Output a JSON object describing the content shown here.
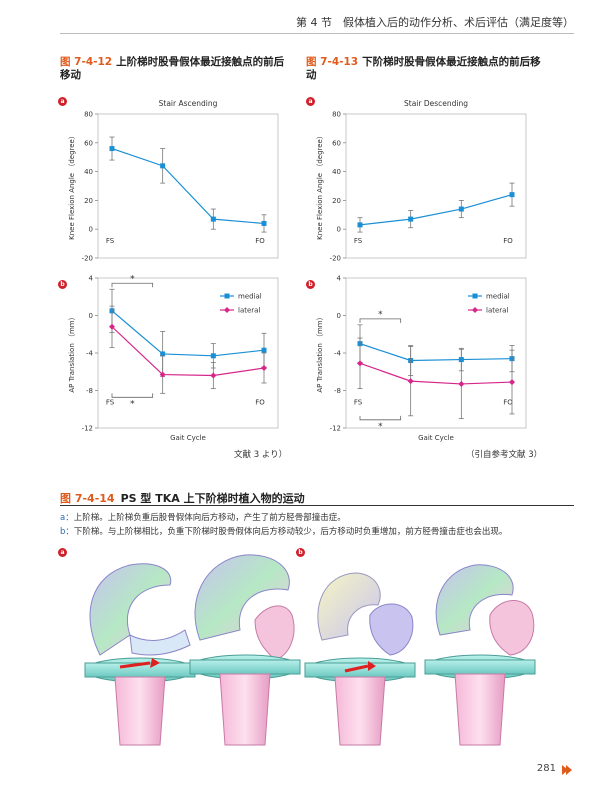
{
  "header": {
    "section": "第 4 节　假体植入后的动作分析、术后评估（满足度等）"
  },
  "fig12": {
    "num": "图 7-4-12",
    "title": "上阶梯时股骨假体最近接触点的前后移动"
  },
  "fig13": {
    "num": "图 7-4-13",
    "title": "下阶梯时股骨假体最近接触点的前后移动"
  },
  "badges": {
    "a": "a",
    "b": "b"
  },
  "fig12_ref": "文献 3 より）",
  "fig13_ref": "（引自参考文献 3）",
  "fig14": {
    "num": "图 7-4-14",
    "title": "PS 型 TKA 上下阶梯时植入物的运动",
    "desc_a_label": "a：",
    "desc_a": "上阶梯。上阶梯负重后股骨假体向后方移动，产生了前方胫骨部撞击症。",
    "desc_b_label": "b：",
    "desc_b": "下阶梯。与上阶梯相比，负重下阶梯时股骨假体向后方移动较少，后方移动时负重增加，前方胫骨撞击症也会出现。"
  },
  "page_number": "281",
  "colors": {
    "medial": "#1a8fd6",
    "lateral": "#d6268a",
    "accent": "#e05a1c"
  },
  "chart_data": [
    {
      "type": "line",
      "title": "Stair Ascending",
      "ylabel": "Knee Flexion Angle （degree）",
      "x_labels": [
        "FS",
        "FO"
      ],
      "yticks": [
        -20,
        0,
        20,
        40,
        60,
        80
      ],
      "ylim": [
        -20,
        80
      ],
      "series": [
        {
          "values": [
            56,
            44,
            7,
            4
          ],
          "errors": [
            8,
            12,
            7,
            6
          ]
        }
      ]
    },
    {
      "type": "line",
      "title": "Stair Descending",
      "ylabel": "Knee Flexion Angle （degree）",
      "x_labels": [
        "FS",
        "FO"
      ],
      "yticks": [
        -20,
        0,
        20,
        40,
        60,
        80
      ],
      "ylim": [
        -20,
        80
      ],
      "series": [
        {
          "values": [
            3,
            7,
            14,
            24
          ],
          "errors": [
            5,
            6,
            6,
            8
          ]
        }
      ]
    },
    {
      "type": "line",
      "ylabel": "AP Translation （mm）",
      "xlabel": "Gait Cycle",
      "x_labels": [
        "FS",
        "FO"
      ],
      "yticks": [
        -12,
        -8,
        -4,
        0,
        4
      ],
      "ylim": [
        -12,
        4
      ],
      "annotations": [
        "*",
        "*"
      ],
      "series": [
        {
          "name": "medial",
          "values": [
            0.5,
            -4.1,
            -4.3,
            -3.7
          ],
          "errors": [
            2.3,
            2.4,
            1.3,
            1.8
          ]
        },
        {
          "name": "lateral",
          "values": [
            -1.2,
            -6.3,
            -6.4,
            -5.6
          ],
          "errors": [
            2.2,
            2.0,
            1.4,
            1.6
          ]
        }
      ]
    },
    {
      "type": "line",
      "ylabel": "AP Translation （mm）",
      "xlabel": "Gait Cycle",
      "x_labels": [
        "FS",
        "FO"
      ],
      "yticks": [
        -12,
        -8,
        -4,
        0,
        4
      ],
      "ylim": [
        -12,
        4
      ],
      "annotations": [
        "*",
        "*"
      ],
      "series": [
        {
          "name": "medial",
          "values": [
            -3.0,
            -4.8,
            -4.7,
            -4.6
          ],
          "errors": [
            2.0,
            1.6,
            1.2,
            1.4
          ]
        },
        {
          "name": "lateral",
          "values": [
            -5.1,
            -7.0,
            -7.3,
            -7.1
          ],
          "errors": [
            2.7,
            3.7,
            3.7,
            3.4
          ]
        }
      ]
    }
  ]
}
